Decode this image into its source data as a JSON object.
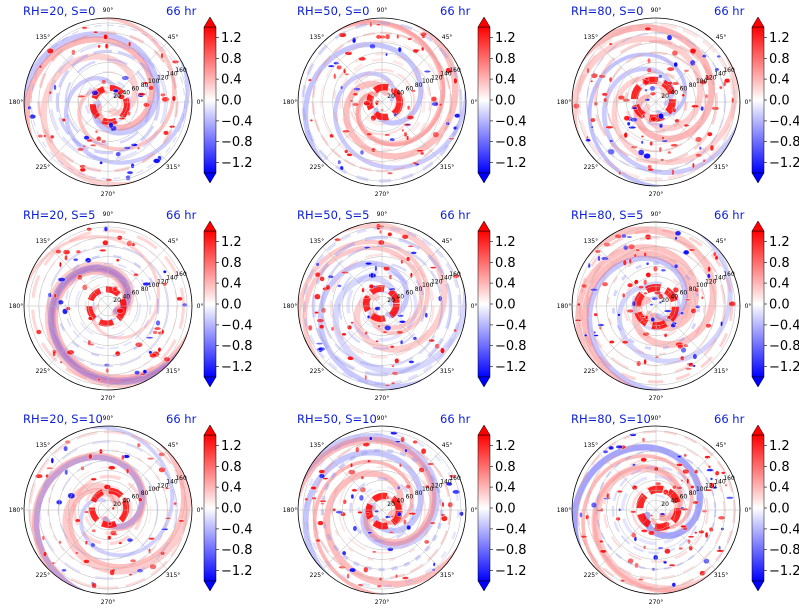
{
  "figure": {
    "time_label": "66 hr",
    "angle_labels": [
      "0°",
      "45°",
      "90°",
      "135°",
      "180°",
      "225°",
      "270°",
      "315°"
    ],
    "radial_labels": [
      "20",
      "40",
      "60",
      "80",
      "100",
      "120",
      "140",
      "160"
    ],
    "colorbar_ticks": [
      "1.2",
      "0.8",
      "0.4",
      "0.0",
      "−0.4",
      "−0.8",
      "−1.2"
    ],
    "colors": {
      "positive": "#ff0000",
      "negative": "#0000ff",
      "neutral": "#ffffff",
      "title": "#0b1fd6"
    }
  },
  "chart_data": [
    {
      "type": "heatmap",
      "projection": "polar",
      "title": "RH=20, S=0",
      "annotation": "66 hr",
      "rh": 20,
      "s": 0,
      "clim": [
        -1.4,
        1.4
      ],
      "rlim": [
        0,
        200
      ]
    },
    {
      "type": "heatmap",
      "projection": "polar",
      "title": "RH=50, S=0",
      "annotation": "66 hr",
      "rh": 50,
      "s": 0,
      "clim": [
        -1.4,
        1.4
      ],
      "rlim": [
        0,
        200
      ]
    },
    {
      "type": "heatmap",
      "projection": "polar",
      "title": "RH=80, S=0",
      "annotation": "66 hr",
      "rh": 80,
      "s": 0,
      "clim": [
        -1.4,
        1.4
      ],
      "rlim": [
        0,
        200
      ]
    },
    {
      "type": "heatmap",
      "projection": "polar",
      "title": "RH=20, S=5",
      "annotation": "66 hr",
      "rh": 20,
      "s": 5,
      "clim": [
        -1.4,
        1.4
      ],
      "rlim": [
        0,
        200
      ]
    },
    {
      "type": "heatmap",
      "projection": "polar",
      "title": "RH=50, S=5",
      "annotation": "66 hr",
      "rh": 50,
      "s": 5,
      "clim": [
        -1.4,
        1.4
      ],
      "rlim": [
        0,
        200
      ]
    },
    {
      "type": "heatmap",
      "projection": "polar",
      "title": "RH=80, S=5",
      "annotation": "66 hr",
      "rh": 80,
      "s": 5,
      "clim": [
        -1.4,
        1.4
      ],
      "rlim": [
        0,
        200
      ]
    },
    {
      "type": "heatmap",
      "projection": "polar",
      "title": "RH=20, S=10",
      "annotation": "66 hr",
      "rh": 20,
      "s": 10,
      "clim": [
        -1.4,
        1.4
      ],
      "rlim": [
        0,
        200
      ]
    },
    {
      "type": "heatmap",
      "projection": "polar",
      "title": "RH=50, S=10",
      "annotation": "66 hr",
      "rh": 50,
      "s": 10,
      "clim": [
        -1.4,
        1.4
      ],
      "rlim": [
        0,
        200
      ]
    },
    {
      "type": "heatmap",
      "projection": "polar",
      "title": "RH=80, S=10",
      "annotation": "66 hr",
      "rh": 80,
      "s": 10,
      "clim": [
        -1.4,
        1.4
      ],
      "rlim": [
        0,
        200
      ]
    }
  ]
}
